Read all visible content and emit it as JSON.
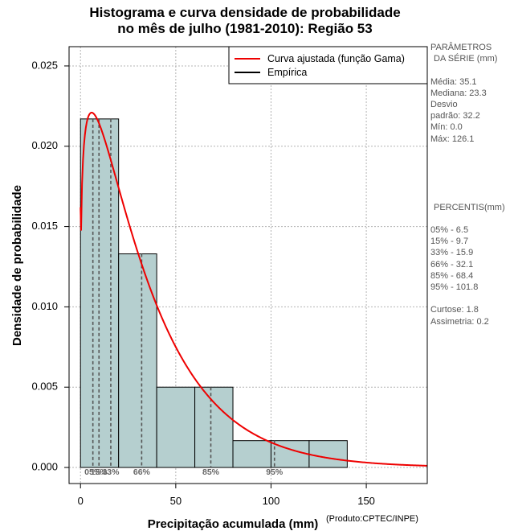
{
  "chart_data": {
    "type": "histogram",
    "title_lines": [
      "Histograma e curva densidade de probabilidade",
      "no mês de julho (1981-2010): Região 53"
    ],
    "xlabel": "Precipitação acumulada (mm)",
    "ylabel": "Densidade de probabilidade",
    "xlim": [
      -6,
      182
    ],
    "ylim": [
      -0.001,
      0.0262
    ],
    "x_ticks": [
      0,
      50,
      100,
      150
    ],
    "y_ticks": [
      0.0,
      0.005,
      0.01,
      0.015,
      0.02,
      0.025
    ],
    "y_tick_labels": [
      "0.000",
      "0.005",
      "0.010",
      "0.015",
      "0.020",
      "0.025"
    ],
    "grid": true,
    "bins": [
      {
        "x0": 0,
        "x1": 20,
        "density": 0.0217
      },
      {
        "x0": 20,
        "x1": 40,
        "density": 0.0133
      },
      {
        "x0": 40,
        "x1": 60,
        "density": 0.005
      },
      {
        "x0": 60,
        "x1": 80,
        "density": 0.005
      },
      {
        "x0": 80,
        "x1": 100,
        "density": 0.00167
      },
      {
        "x0": 100,
        "x1": 120,
        "density": 0.00167
      },
      {
        "x0": 120,
        "x1": 140,
        "density": 0.00167
      }
    ],
    "gamma_fit": {
      "shape": 1.2,
      "scale": 29.25
    },
    "percentile_lines": [
      {
        "label": "05%",
        "value": 6.5
      },
      {
        "label": "15%",
        "value": 9.7
      },
      {
        "label": "33%",
        "value": 15.9
      },
      {
        "label": "66%",
        "value": 32.1
      },
      {
        "label": "85%",
        "value": 68.4
      },
      {
        "label": "95%",
        "value": 101.8
      }
    ],
    "legend": [
      "Curva ajustada (função Gama)",
      "Empírica"
    ],
    "colors": {
      "bars": "#b5cfcf",
      "curve": "#ee0000",
      "grid": "#b4b4b4",
      "percentile": "#555555"
    }
  },
  "stats_panel": {
    "params_title_1": "PARÂMETROS",
    "params_title_2": "DA SÉRIE (mm)",
    "media": "Média:  35.1",
    "mediana": "Mediana:  23.3",
    "desvio_1": "Desvio",
    "desvio_2": "padrão:  32.2",
    "min": "Mín:  0.0",
    "max": "Máx:  126.1",
    "percentis_title": "PERCENTIS(mm)",
    "p05": "05% -  6.5",
    "p15": "15% -  9.7",
    "p33": "33% -  15.9",
    "p66": "66% -  32.1",
    "p85": "85% -  68.4",
    "p95": "95% -  101.8",
    "curtose": "Curtose:  1.8",
    "assimetria": "Assimetria:  0.2"
  },
  "credit": "(Produto:CPTEC/INPE)"
}
